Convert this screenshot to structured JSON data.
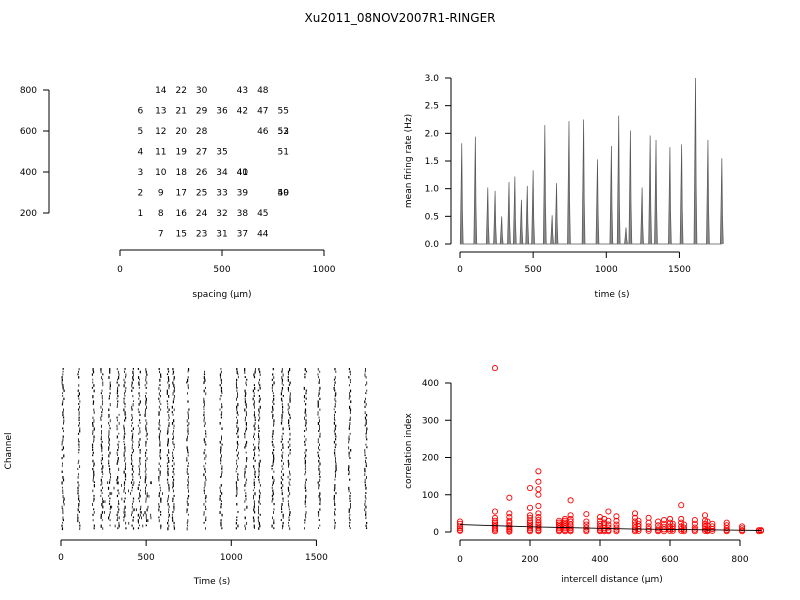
{
  "title": "Xu2011_08NOV2007R1-RINGER",
  "chart_data": [
    {
      "type": "scatter",
      "name": "electrode-layout",
      "xlabel": "spacing (µm)",
      "ylabel": "",
      "xlim": [
        0,
        1000
      ],
      "ylim": [
        150,
        850
      ],
      "xticks": [
        0,
        500,
        1000
      ],
      "yticks": [
        200,
        400,
        600,
        800
      ],
      "points": [
        {
          "label": "14",
          "x": 200,
          "y": 800
        },
        {
          "label": "22",
          "x": 300,
          "y": 800
        },
        {
          "label": "30",
          "x": 400,
          "y": 800
        },
        {
          "label": "43",
          "x": 600,
          "y": 800
        },
        {
          "label": "48",
          "x": 700,
          "y": 800
        },
        {
          "label": "6",
          "x": 100,
          "y": 700
        },
        {
          "label": "13",
          "x": 200,
          "y": 700
        },
        {
          "label": "21",
          "x": 300,
          "y": 700
        },
        {
          "label": "29",
          "x": 400,
          "y": 700
        },
        {
          "label": "36",
          "x": 500,
          "y": 700
        },
        {
          "label": "42",
          "x": 600,
          "y": 700
        },
        {
          "label": "47",
          "x": 700,
          "y": 700
        },
        {
          "label": "55",
          "x": 800,
          "y": 700
        },
        {
          "label": "5",
          "x": 100,
          "y": 600
        },
        {
          "label": "12",
          "x": 200,
          "y": 600
        },
        {
          "label": "20",
          "x": 300,
          "y": 600
        },
        {
          "label": "28",
          "x": 400,
          "y": 600
        },
        {
          "label": "46",
          "x": 700,
          "y": 600
        },
        {
          "label": "53",
          "x": 800,
          "y": 600
        },
        {
          "label": "52",
          "x": 800,
          "y": 600
        },
        {
          "label": "4",
          "x": 100,
          "y": 500
        },
        {
          "label": "11",
          "x": 200,
          "y": 500
        },
        {
          "label": "19",
          "x": 300,
          "y": 500
        },
        {
          "label": "27",
          "x": 400,
          "y": 500
        },
        {
          "label": "35",
          "x": 500,
          "y": 500
        },
        {
          "label": "51",
          "x": 800,
          "y": 500
        },
        {
          "label": "3",
          "x": 100,
          "y": 400
        },
        {
          "label": "10",
          "x": 200,
          "y": 400
        },
        {
          "label": "18",
          "x": 300,
          "y": 400
        },
        {
          "label": "26",
          "x": 400,
          "y": 400
        },
        {
          "label": "34",
          "x": 500,
          "y": 400
        },
        {
          "label": "40",
          "x": 600,
          "y": 400
        },
        {
          "label": "41",
          "x": 600,
          "y": 400
        },
        {
          "label": "2",
          "x": 100,
          "y": 300
        },
        {
          "label": "9",
          "x": 200,
          "y": 300
        },
        {
          "label": "17",
          "x": 300,
          "y": 300
        },
        {
          "label": "25",
          "x": 400,
          "y": 300
        },
        {
          "label": "33",
          "x": 500,
          "y": 300
        },
        {
          "label": "39",
          "x": 600,
          "y": 300
        },
        {
          "label": "50",
          "x": 800,
          "y": 300
        },
        {
          "label": "49",
          "x": 800,
          "y": 300
        },
        {
          "label": "1",
          "x": 100,
          "y": 200
        },
        {
          "label": "8",
          "x": 200,
          "y": 200
        },
        {
          "label": "16",
          "x": 300,
          "y": 200
        },
        {
          "label": "24",
          "x": 400,
          "y": 200
        },
        {
          "label": "32",
          "x": 500,
          "y": 200
        },
        {
          "label": "38",
          "x": 600,
          "y": 200
        },
        {
          "label": "45",
          "x": 700,
          "y": 200
        },
        {
          "label": "7",
          "x": 200,
          "y": 100
        },
        {
          "label": "15",
          "x": 300,
          "y": 100
        },
        {
          "label": "23",
          "x": 400,
          "y": 100
        },
        {
          "label": "31",
          "x": 500,
          "y": 100
        },
        {
          "label": "37",
          "x": 600,
          "y": 100
        },
        {
          "label": "44",
          "x": 700,
          "y": 100
        }
      ]
    },
    {
      "type": "line",
      "name": "mean-firing-rate",
      "xlabel": "time (s)",
      "ylabel": "mean firing rate (Hz)",
      "xlim": [
        0,
        1800
      ],
      "ylim": [
        0,
        3.0
      ],
      "xticks": [
        0,
        500,
        1000,
        1500
      ],
      "yticks": [
        0.0,
        0.5,
        1.0,
        1.5,
        2.0,
        2.5,
        3.0
      ],
      "yticklabels": [
        "0.0",
        "0.5",
        "1.0",
        "1.5",
        "2.0",
        "2.5",
        "3.0"
      ],
      "bursts": [
        {
          "t": 12,
          "rate": 1.82
        },
        {
          "t": 105,
          "rate": 1.94
        },
        {
          "t": 190,
          "rate": 1.02
        },
        {
          "t": 240,
          "rate": 0.96
        },
        {
          "t": 285,
          "rate": 0.5
        },
        {
          "t": 335,
          "rate": 1.12
        },
        {
          "t": 375,
          "rate": 1.22
        },
        {
          "t": 420,
          "rate": 0.8
        },
        {
          "t": 460,
          "rate": 1.05
        },
        {
          "t": 500,
          "rate": 1.33
        },
        {
          "t": 580,
          "rate": 2.15
        },
        {
          "t": 630,
          "rate": 0.52
        },
        {
          "t": 660,
          "rate": 1.1
        },
        {
          "t": 745,
          "rate": 2.22
        },
        {
          "t": 845,
          "rate": 2.25
        },
        {
          "t": 940,
          "rate": 1.53
        },
        {
          "t": 1035,
          "rate": 1.77
        },
        {
          "t": 1085,
          "rate": 2.32
        },
        {
          "t": 1135,
          "rate": 0.3
        },
        {
          "t": 1165,
          "rate": 2.05
        },
        {
          "t": 1245,
          "rate": 1.02
        },
        {
          "t": 1300,
          "rate": 1.96
        },
        {
          "t": 1340,
          "rate": 1.88
        },
        {
          "t": 1435,
          "rate": 1.75
        },
        {
          "t": 1515,
          "rate": 1.8
        },
        {
          "t": 1610,
          "rate": 3.0
        },
        {
          "t": 1695,
          "rate": 1.88
        },
        {
          "t": 1790,
          "rate": 1.55
        }
      ]
    },
    {
      "type": "raster",
      "name": "spike-raster",
      "xlabel": "Time (s)",
      "ylabel": "Channel",
      "xlim": [
        0,
        1800
      ],
      "xticks": [
        0,
        500,
        1000,
        1500
      ],
      "channels": 60,
      "burst_times": [
        12,
        105,
        190,
        240,
        285,
        335,
        375,
        420,
        460,
        500,
        580,
        630,
        660,
        745,
        845,
        940,
        1035,
        1085,
        1135,
        1165,
        1245,
        1300,
        1340,
        1435,
        1515,
        1610,
        1695,
        1790
      ]
    },
    {
      "type": "scatter",
      "name": "correlation-vs-distance",
      "xlabel": "intercell distance (µm)",
      "ylabel": "correlation index",
      "xlim": [
        0,
        870
      ],
      "ylim": [
        0,
        450
      ],
      "xticks": [
        0,
        200,
        400,
        600,
        800
      ],
      "yticks": [
        0,
        100,
        200,
        300,
        400
      ],
      "point_color": "#ff0000",
      "fit_color": "#000000",
      "fit": [
        [
          0,
          20
        ],
        [
          100,
          17
        ],
        [
          200,
          14
        ],
        [
          300,
          12
        ],
        [
          400,
          10
        ],
        [
          500,
          8
        ],
        [
          600,
          7
        ],
        [
          700,
          6
        ],
        [
          800,
          5
        ],
        [
          860,
          4
        ]
      ],
      "groups": [
        {
          "x": 0,
          "y": [
            28,
            22,
            15,
            10,
            5,
            3
          ]
        },
        {
          "x": 100,
          "y": 440,
          "single": true
        },
        {
          "x": 100,
          "y": [
            55,
            38,
            30,
            25,
            20,
            15,
            10,
            6,
            2
          ]
        },
        {
          "x": 141,
          "y": [
            92,
            50,
            40,
            30,
            25,
            18,
            12,
            8,
            4,
            1
          ]
        },
        {
          "x": 200,
          "y": [
            118,
            65,
            45,
            38,
            30,
            25,
            20,
            15,
            10,
            5,
            2
          ]
        },
        {
          "x": 224,
          "y": [
            163,
            135,
            115,
            100,
            70,
            50,
            40,
            32,
            25,
            20,
            15,
            10,
            5,
            2
          ]
        },
        {
          "x": 283,
          "y": [
            30,
            25,
            20,
            15,
            10,
            5,
            2
          ]
        },
        {
          "x": 300,
          "y": [
            35,
            30,
            25,
            20,
            15,
            10,
            5,
            2
          ]
        },
        {
          "x": 316,
          "y": [
            85,
            45,
            35,
            28,
            20,
            15,
            10,
            5,
            2
          ]
        },
        {
          "x": 361,
          "y": [
            48,
            28,
            20,
            12,
            6,
            2
          ]
        },
        {
          "x": 400,
          "y": [
            40,
            30,
            22,
            15,
            10,
            5,
            2
          ]
        },
        {
          "x": 412,
          "y": [
            35,
            25,
            18,
            10,
            5,
            2
          ]
        },
        {
          "x": 424,
          "y": [
            55,
            30,
            20,
            12,
            5,
            2
          ]
        },
        {
          "x": 447,
          "y": [
            42,
            30,
            20,
            12,
            6,
            2
          ]
        },
        {
          "x": 500,
          "y": [
            50,
            38,
            28,
            20,
            12,
            6,
            2
          ]
        },
        {
          "x": 510,
          "y": [
            30,
            22,
            15,
            8,
            3
          ]
        },
        {
          "x": 539,
          "y": [
            38,
            25,
            15,
            8,
            3
          ]
        },
        {
          "x": 566,
          "y": [
            28,
            18,
            10,
            5,
            2
          ]
        },
        {
          "x": 583,
          "y": [
            32,
            22,
            14,
            7,
            2
          ]
        },
        {
          "x": 600,
          "y": [
            35,
            25,
            15,
            8,
            3
          ]
        },
        {
          "x": 608,
          "y": [
            22,
            15,
            8,
            3
          ]
        },
        {
          "x": 632,
          "y": [
            72,
            35,
            25,
            15,
            8,
            3
          ]
        },
        {
          "x": 640,
          "y": [
            20,
            12,
            6,
            2
          ]
        },
        {
          "x": 671,
          "y": [
            32,
            22,
            12,
            6,
            2
          ]
        },
        {
          "x": 700,
          "y": [
            45,
            30,
            22,
            15,
            8,
            3
          ]
        },
        {
          "x": 707,
          "y": [
            28,
            18,
            10,
            5,
            2
          ]
        },
        {
          "x": 721,
          "y": [
            22,
            15,
            8,
            3
          ]
        },
        {
          "x": 762,
          "y": [
            25,
            18,
            10,
            5,
            2
          ]
        },
        {
          "x": 806,
          "y": [
            15,
            10,
            5,
            2
          ]
        },
        {
          "x": 854,
          "y": [
            5,
            2
          ]
        },
        {
          "x": 860,
          "y": [
            5,
            3
          ]
        }
      ]
    }
  ]
}
